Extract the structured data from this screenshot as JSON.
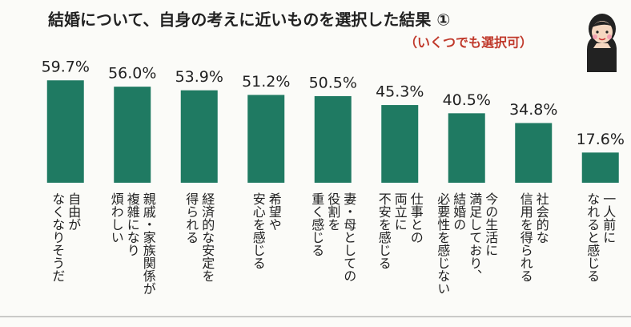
{
  "chart_data": {
    "type": "bar",
    "title": "結婚について、自身の考えに近いものを選択した結果 ①",
    "subtitle": "（いくつでも選択可）",
    "categories": [
      [
        "自由が",
        "なくなりそうだ"
      ],
      [
        "親戚・家族関係が",
        "複雑になり",
        "煩わしい"
      ],
      [
        "経済的な安定を",
        "得られる"
      ],
      [
        "希望や",
        "安心を感じる"
      ],
      [
        "妻・母としての",
        "役割を",
        "重く感じる"
      ],
      [
        "仕事との",
        "両立に",
        "不安を感じる"
      ],
      [
        "今の生活に",
        "満足しており、",
        "結婚の",
        "必要性を感じない"
      ],
      [
        "社会的な",
        "信用を得られる"
      ],
      [
        "一人前に",
        "なれると感じる"
      ]
    ],
    "values": [
      59.7,
      56.0,
      53.9,
      51.2,
      50.5,
      45.3,
      40.5,
      34.8,
      17.6
    ],
    "value_labels": [
      "59.7%",
      "56.0%",
      "53.9%",
      "51.2%",
      "50.5%",
      "45.3%",
      "40.5%",
      "34.8%",
      "17.6%"
    ],
    "color": "#1f7a62"
  }
}
